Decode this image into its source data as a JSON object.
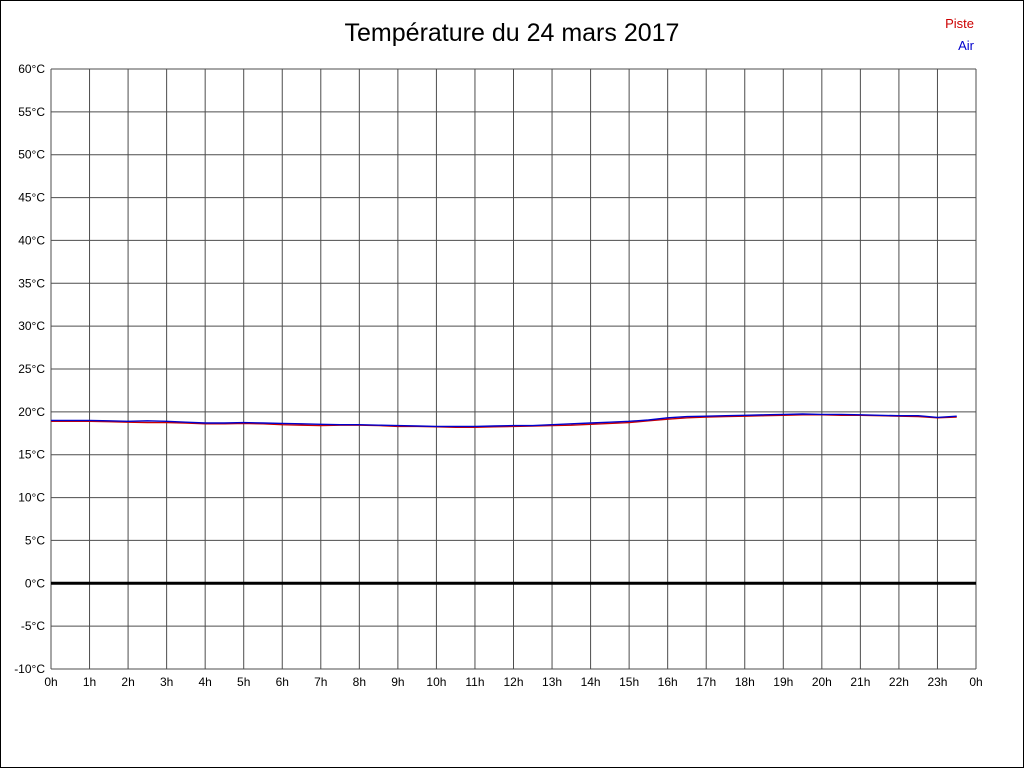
{
  "title": "Température du 24 mars 2017",
  "legend": {
    "piste_label": "Piste",
    "air_label": "Air"
  },
  "colors": {
    "piste": "#cc0000",
    "air": "#0000cc",
    "grid": "#4d4d4d",
    "zero_line": "#000000",
    "text": "#000000",
    "background": "#ffffff"
  },
  "chart_data": {
    "type": "line",
    "title": "Température du 24 mars 2017",
    "xlabel": "",
    "ylabel": "",
    "x_unit": "hours",
    "xlim": [
      0,
      24
    ],
    "ylim": [
      -10,
      60
    ],
    "x_tick_step": 1,
    "y_tick_step": 5,
    "grid": true,
    "legend_position": "top-right",
    "zero_line_emphasized": true,
    "y_tick_labels": [
      "60°C",
      "55°C",
      "50°C",
      "45°C",
      "40°C",
      "35°C",
      "30°C",
      "25°C",
      "20°C",
      "15°C",
      "10°C",
      "5°C",
      "0°C",
      "-5°C",
      "-10°C"
    ],
    "x_tick_labels": [
      "0h",
      "1h",
      "2h",
      "3h",
      "4h",
      "5h",
      "6h",
      "7h",
      "8h",
      "9h",
      "10h",
      "11h",
      "12h",
      "13h",
      "14h",
      "15h",
      "16h",
      "17h",
      "18h",
      "19h",
      "20h",
      "21h",
      "22h",
      "23h",
      "0h"
    ],
    "x": [
      0,
      0.5,
      1,
      1.5,
      2,
      2.5,
      3,
      3.5,
      4,
      4.5,
      5,
      5.5,
      6,
      6.5,
      7,
      7.5,
      8,
      8.5,
      9,
      9.5,
      10,
      10.5,
      11,
      11.5,
      12,
      12.5,
      13,
      13.5,
      14,
      14.5,
      15,
      15.5,
      16,
      16.5,
      17,
      17.5,
      18,
      18.5,
      19,
      19.5,
      20,
      20.5,
      21,
      21.5,
      22,
      22.5,
      23,
      23.5
    ],
    "series": [
      {
        "name": "Piste",
        "color": "#cc0000",
        "values": [
          18.9,
          18.9,
          18.9,
          18.85,
          18.8,
          18.75,
          18.75,
          18.7,
          18.6,
          18.6,
          18.65,
          18.6,
          18.5,
          18.45,
          18.4,
          18.45,
          18.45,
          18.4,
          18.3,
          18.3,
          18.25,
          18.2,
          18.2,
          18.25,
          18.3,
          18.35,
          18.4,
          18.45,
          18.55,
          18.65,
          18.75,
          18.95,
          19.15,
          19.3,
          19.4,
          19.45,
          19.5,
          19.55,
          19.6,
          19.65,
          19.65,
          19.6,
          19.6,
          19.55,
          19.5,
          19.45,
          19.3,
          19.4
        ]
      },
      {
        "name": "Air",
        "color": "#0000cc",
        "values": [
          19.0,
          19.0,
          19.0,
          18.95,
          18.9,
          18.95,
          18.9,
          18.8,
          18.7,
          18.7,
          18.75,
          18.7,
          18.65,
          18.6,
          18.55,
          18.5,
          18.5,
          18.45,
          18.4,
          18.35,
          18.3,
          18.3,
          18.3,
          18.35,
          18.4,
          18.4,
          18.5,
          18.6,
          18.7,
          18.8,
          18.9,
          19.05,
          19.3,
          19.45,
          19.5,
          19.55,
          19.6,
          19.65,
          19.7,
          19.75,
          19.7,
          19.7,
          19.65,
          19.6,
          19.55,
          19.55,
          19.35,
          19.5
        ]
      }
    ]
  }
}
